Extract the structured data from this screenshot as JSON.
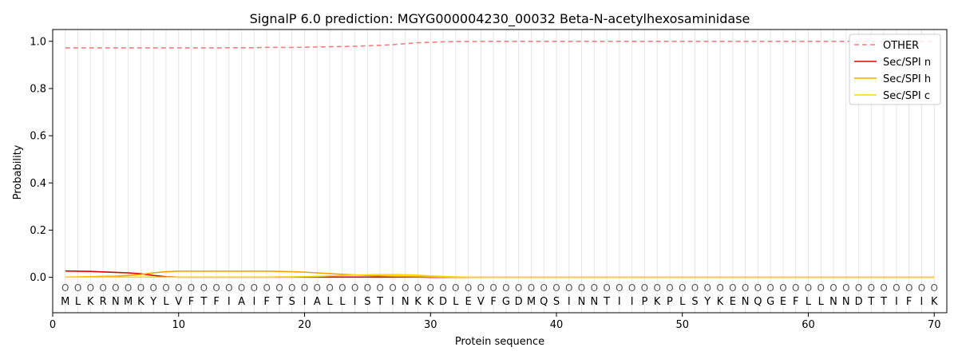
{
  "chart_data": {
    "type": "line",
    "title": "SignalP 6.0 prediction: MGYG000004230_00032 Beta-N-acetylhexosaminidase",
    "xlabel": "Protein sequence",
    "ylabel": "Probability",
    "xlim": [
      0,
      71
    ],
    "ylim": [
      -0.15,
      1.05
    ],
    "xticks": [
      0,
      10,
      20,
      30,
      40,
      50,
      60,
      70
    ],
    "yticks": [
      0.0,
      0.2,
      0.4,
      0.6,
      0.8,
      1.0
    ],
    "ytick_labels": [
      "0.0",
      "0.2",
      "0.4",
      "0.6",
      "0.8",
      "1.0"
    ],
    "grid": "vertical lines at each residue",
    "legend_position": "top-right",
    "sequence": [
      "M",
      "L",
      "K",
      "R",
      "N",
      "M",
      "K",
      "Y",
      "L",
      "V",
      "F",
      "T",
      "F",
      "I",
      "A",
      "I",
      "F",
      "T",
      "S",
      "I",
      "A",
      "L",
      "L",
      "I",
      "S",
      "T",
      "I",
      "N",
      "K",
      "K",
      "D",
      "L",
      "E",
      "V",
      "F",
      "G",
      "D",
      "M",
      "Q",
      "S",
      "I",
      "N",
      "N",
      "T",
      "I",
      "I",
      "P",
      "K",
      "P",
      "L",
      "S",
      "Y",
      "K",
      "E",
      "N",
      "Q",
      "G",
      "E",
      "F",
      "L",
      "L",
      "N",
      "N",
      "D",
      "T",
      "T",
      "I",
      "F",
      "I",
      "K"
    ],
    "predicted_label": "O",
    "series": [
      {
        "name": "OTHER",
        "color": "#f08080",
        "dash": "dashed",
        "values": [
          0.972,
          0.972,
          0.972,
          0.972,
          0.972,
          0.972,
          0.972,
          0.972,
          0.972,
          0.972,
          0.972,
          0.972,
          0.972,
          0.973,
          0.973,
          0.973,
          0.974,
          0.974,
          0.974,
          0.975,
          0.976,
          0.977,
          0.978,
          0.979,
          0.981,
          0.983,
          0.986,
          0.99,
          0.994,
          0.996,
          0.998,
          0.999,
          0.999,
          1.0,
          1.0,
          1.0,
          1.0,
          1.0,
          1.0,
          1.0,
          1.0,
          1.0,
          1.0,
          1.0,
          1.0,
          1.0,
          1.0,
          1.0,
          1.0,
          1.0,
          1.0,
          1.0,
          1.0,
          1.0,
          1.0,
          1.0,
          1.0,
          1.0,
          1.0,
          1.0,
          1.0,
          1.0,
          1.0,
          1.0,
          1.0,
          1.0,
          1.0,
          1.0,
          1.0,
          1.0
        ]
      },
      {
        "name": "Sec/SPI n",
        "color": "#dd0000",
        "dash": "solid",
        "values": [
          0.027,
          0.026,
          0.025,
          0.023,
          0.021,
          0.019,
          0.015,
          0.008,
          0.003,
          0.001,
          0.001,
          0.001,
          0.001,
          0.001,
          0.001,
          0.001,
          0.001,
          0.001,
          0.001,
          0.001,
          0.001,
          0.001,
          0.001,
          0.001,
          0.001,
          0.001,
          0.001,
          0.001,
          0.001,
          0.0,
          0.0,
          0.0,
          0.0,
          0.0,
          0.0,
          0.0,
          0.0,
          0.0,
          0.0,
          0.0,
          0.0,
          0.0,
          0.0,
          0.0,
          0.0,
          0.0,
          0.0,
          0.0,
          0.0,
          0.0,
          0.0,
          0.0,
          0.0,
          0.0,
          0.0,
          0.0,
          0.0,
          0.0,
          0.0,
          0.0,
          0.0,
          0.0,
          0.0,
          0.0,
          0.0,
          0.0,
          0.0,
          0.0,
          0.0,
          0.0
        ]
      },
      {
        "name": "Sec/SPI h",
        "color": "#f5a300",
        "dash": "solid",
        "values": [
          0.001,
          0.002,
          0.003,
          0.004,
          0.005,
          0.008,
          0.012,
          0.019,
          0.024,
          0.026,
          0.026,
          0.026,
          0.026,
          0.026,
          0.026,
          0.026,
          0.026,
          0.025,
          0.024,
          0.022,
          0.019,
          0.016,
          0.013,
          0.01,
          0.008,
          0.006,
          0.005,
          0.004,
          0.003,
          0.002,
          0.001,
          0.0,
          0.0,
          0.0,
          0.0,
          0.0,
          0.0,
          0.0,
          0.0,
          0.0,
          0.0,
          0.0,
          0.0,
          0.0,
          0.0,
          0.0,
          0.0,
          0.0,
          0.0,
          0.0,
          0.0,
          0.0,
          0.0,
          0.0,
          0.0,
          0.0,
          0.0,
          0.0,
          0.0,
          0.0,
          0.0,
          0.0,
          0.0,
          0.0,
          0.0,
          0.0,
          0.0,
          0.0,
          0.0,
          0.0
        ]
      },
      {
        "name": "Sec/SPI c",
        "color": "#ffd700",
        "dash": "solid",
        "values": [
          0.001,
          0.001,
          0.001,
          0.001,
          0.001,
          0.001,
          0.001,
          0.001,
          0.001,
          0.001,
          0.001,
          0.001,
          0.001,
          0.001,
          0.001,
          0.001,
          0.001,
          0.002,
          0.002,
          0.003,
          0.004,
          0.006,
          0.008,
          0.01,
          0.011,
          0.012,
          0.012,
          0.011,
          0.009,
          0.006,
          0.004,
          0.002,
          0.001,
          0.0,
          0.0,
          0.0,
          0.0,
          0.0,
          0.0,
          0.0,
          0.0,
          0.0,
          0.0,
          0.0,
          0.0,
          0.0,
          0.0,
          0.0,
          0.0,
          0.0,
          0.0,
          0.0,
          0.0,
          0.0,
          0.0,
          0.0,
          0.0,
          0.0,
          0.0,
          0.0,
          0.0,
          0.0,
          0.0,
          0.0,
          0.0,
          0.0,
          0.0,
          0.0,
          0.0,
          0.0
        ]
      }
    ]
  }
}
